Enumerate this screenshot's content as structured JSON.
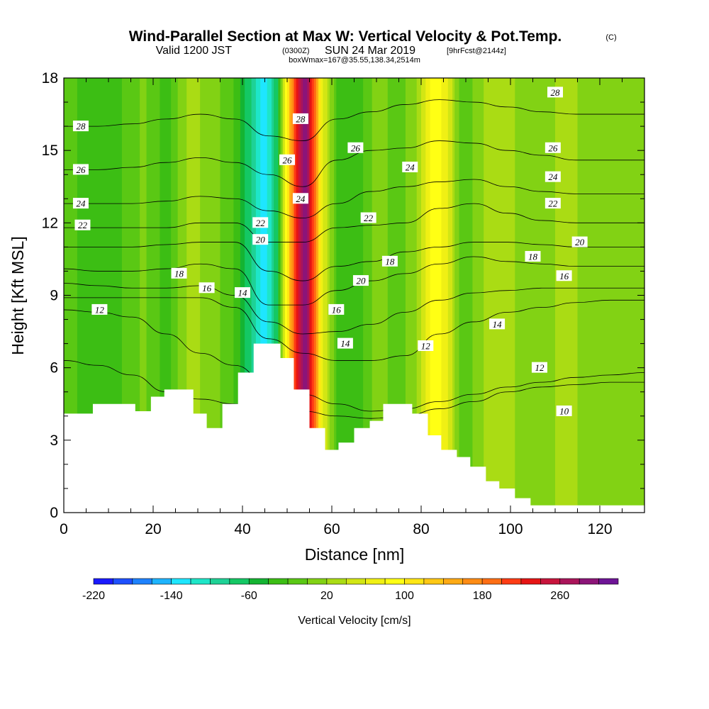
{
  "header": {
    "title": "Wind-Parallel Section at Max W: Vertical Velocity & Pot.Temp.",
    "copyright": "(C)",
    "valid_prefix": "Valid 1200 JST",
    "utc_time": "(0300Z)",
    "valid_date": "SUN 24 Mar 2019",
    "forecast": "[9hrFcst@2144z]",
    "box_info": "boxWmax=167@35.55,138.34,2514m"
  },
  "chart_data": {
    "type": "heatmap",
    "xlabel": "Distance [nm]",
    "ylabel": "Height [Kft MSL]",
    "xlim": [
      0,
      130
    ],
    "ylim": [
      0,
      18
    ],
    "x_ticks": [
      "0",
      "20",
      "40",
      "60",
      "80",
      "100",
      "120"
    ],
    "y_ticks": [
      "0",
      "3",
      "6",
      "9",
      "12",
      "15",
      "18"
    ],
    "grid": false,
    "colorbar": {
      "label": "Vertical Velocity [cm/s]",
      "min": -220,
      "max": 320,
      "step": 20,
      "tick_labels": [
        "-220",
        "-140",
        "-60",
        "20",
        "100",
        "180",
        "260"
      ],
      "colors": [
        "#1a1aff",
        "#1e50ff",
        "#1e82ff",
        "#1eb4ff",
        "#1ee6ff",
        "#1ee6c8",
        "#1ed296",
        "#14c864",
        "#14b432",
        "#3cbe14",
        "#5ac814",
        "#82d214",
        "#aadc14",
        "#d2e614",
        "#f0f014",
        "#ffff14",
        "#ffe614",
        "#ffc814",
        "#ffaa14",
        "#ff8c14",
        "#ff6e14",
        "#ff3c14",
        "#e61414",
        "#c8143c",
        "#aa145a",
        "#8c1478",
        "#6e1496"
      ]
    },
    "vertical_velocity_columns": [
      {
        "x": 0,
        "w": 0
      },
      {
        "x": 5,
        "w": -35
      },
      {
        "x": 12,
        "w": -25
      },
      {
        "x": 18,
        "w": 5
      },
      {
        "x": 23,
        "w": -30
      },
      {
        "x": 28,
        "w": 25
      },
      {
        "x": 33,
        "w": 15
      },
      {
        "x": 38,
        "w": -20
      },
      {
        "x": 42,
        "w": -80
      },
      {
        "x": 45,
        "w": -140
      },
      {
        "x": 48,
        "w": -60
      },
      {
        "x": 50,
        "w": 100
      },
      {
        "x": 52,
        "w": 220
      },
      {
        "x": 54,
        "w": 300
      },
      {
        "x": 56,
        "w": 200
      },
      {
        "x": 58,
        "w": 60
      },
      {
        "x": 61,
        "w": -20
      },
      {
        "x": 65,
        "w": -40
      },
      {
        "x": 70,
        "w": 10
      },
      {
        "x": 75,
        "w": -10
      },
      {
        "x": 79,
        "w": 20
      },
      {
        "x": 83,
        "w": 100
      },
      {
        "x": 86,
        "w": 60
      },
      {
        "x": 89,
        "w": -20
      },
      {
        "x": 93,
        "w": 15
      },
      {
        "x": 97,
        "w": 35
      },
      {
        "x": 101,
        "w": 20
      },
      {
        "x": 106,
        "w": 10
      },
      {
        "x": 112,
        "w": 25
      },
      {
        "x": 118,
        "w": 15
      },
      {
        "x": 124,
        "w": 10
      },
      {
        "x": 130,
        "w": 5
      }
    ],
    "terrain": [
      [
        0,
        4.1
      ],
      [
        6.5,
        4.1
      ],
      [
        6.5,
        4.5
      ],
      [
        16,
        4.5
      ],
      [
        16,
        4.2
      ],
      [
        19.5,
        4.2
      ],
      [
        19.5,
        4.8
      ],
      [
        22.5,
        4.8
      ],
      [
        22.5,
        5.1
      ],
      [
        29,
        5.1
      ],
      [
        29,
        4.1
      ],
      [
        32,
        4.1
      ],
      [
        32,
        3.5
      ],
      [
        35.5,
        3.5
      ],
      [
        35.5,
        4.5
      ],
      [
        39,
        4.5
      ],
      [
        39,
        5.8
      ],
      [
        42.5,
        5.8
      ],
      [
        42.5,
        7.0
      ],
      [
        48.5,
        7.0
      ],
      [
        48.5,
        6.4
      ],
      [
        51.5,
        6.4
      ],
      [
        51.5,
        5.1
      ],
      [
        55,
        5.1
      ],
      [
        55,
        3.5
      ],
      [
        58.5,
        3.5
      ],
      [
        58.5,
        2.6
      ],
      [
        61.5,
        2.6
      ],
      [
        61.5,
        2.9
      ],
      [
        65,
        2.9
      ],
      [
        65,
        3.5
      ],
      [
        68.5,
        3.5
      ],
      [
        68.5,
        3.8
      ],
      [
        71.5,
        3.8
      ],
      [
        71.5,
        4.5
      ],
      [
        78,
        4.5
      ],
      [
        78,
        4.1
      ],
      [
        81.5,
        4.1
      ],
      [
        81.5,
        3.2
      ],
      [
        84.5,
        3.2
      ],
      [
        84.5,
        2.6
      ],
      [
        88,
        2.6
      ],
      [
        88,
        2.3
      ],
      [
        91,
        2.3
      ],
      [
        91,
        1.9
      ],
      [
        94.5,
        1.9
      ],
      [
        94.5,
        1.3
      ],
      [
        97.5,
        1.3
      ],
      [
        97.5,
        1.0
      ],
      [
        101,
        1.0
      ],
      [
        101,
        0.6
      ],
      [
        104.5,
        0.6
      ],
      [
        104.5,
        0.3
      ],
      [
        130,
        0.3
      ]
    ],
    "theta_contours": [
      {
        "level": 10,
        "y": [
          6.3,
          6.1,
          5.7,
          5.0,
          4.7,
          4.5,
          4.3,
          4.2,
          4.0,
          3.9,
          4.0,
          4.3,
          4.6,
          5.0,
          5.2,
          5.3,
          5.4,
          5.4
        ]
      },
      {
        "level": 12,
        "y": [
          8.4,
          8.3,
          8.1,
          7.4,
          6.6,
          6.1,
          5.3,
          4.9,
          4.5,
          4.2,
          4.3,
          4.6,
          4.9,
          5.2,
          5.4,
          5.6,
          5.7,
          5.8
        ]
      },
      {
        "level": 14,
        "y": [
          8.9,
          8.9,
          8.9,
          8.9,
          8.9,
          8.5,
          7.2,
          6.6,
          6.3,
          6.3,
          6.5,
          7.4,
          7.9,
          8.3,
          8.5,
          8.7,
          8.8,
          8.8
        ]
      },
      {
        "level": 16,
        "y": [
          9.5,
          9.4,
          9.3,
          9.3,
          9.4,
          9.0,
          7.9,
          7.4,
          7.5,
          7.8,
          8.3,
          8.8,
          9.1,
          9.2,
          9.3,
          9.3,
          9.3,
          9.3
        ]
      },
      {
        "level": 18,
        "y": [
          10.1,
          10.0,
          10.0,
          10.1,
          10.3,
          10.1,
          8.6,
          8.6,
          9.2,
          9.6,
          9.9,
          10.3,
          10.6,
          10.4,
          10.3,
          10.2,
          10.2,
          10.2
        ]
      },
      {
        "level": 20,
        "y": [
          11.0,
          11.0,
          11.0,
          11.1,
          11.2,
          11.2,
          10.0,
          9.6,
          10.2,
          10.4,
          10.8,
          11.0,
          11.2,
          11.2,
          11.1,
          11.0,
          11.0,
          11.0
        ]
      },
      {
        "level": 22,
        "y": [
          11.8,
          11.8,
          11.8,
          11.8,
          12.0,
          12.0,
          11.2,
          11.2,
          11.8,
          11.9,
          12.0,
          12.6,
          12.8,
          12.4,
          12.1,
          12.0,
          12.0,
          12.0
        ]
      },
      {
        "level": 24,
        "y": [
          12.8,
          12.8,
          12.8,
          12.9,
          13.1,
          13.0,
          12.5,
          12.2,
          12.8,
          13.3,
          13.5,
          13.7,
          13.8,
          13.5,
          13.3,
          13.2,
          13.2,
          13.2
        ]
      },
      {
        "level": 26,
        "y": [
          14.2,
          14.2,
          14.3,
          14.5,
          14.7,
          14.5,
          14.0,
          13.5,
          14.6,
          15.0,
          15.1,
          15.4,
          15.3,
          15.0,
          14.8,
          14.6,
          14.6,
          14.6
        ]
      },
      {
        "level": 28,
        "y": [
          16.0,
          16.0,
          16.1,
          16.3,
          16.5,
          16.3,
          15.6,
          15.4,
          16.3,
          16.6,
          16.9,
          17.1,
          17.0,
          16.8,
          16.6,
          16.5,
          16.5,
          16.5
        ]
      }
    ],
    "contour_label_positions": [
      {
        "text": "28",
        "x": 3.8,
        "y": 16.0
      },
      {
        "text": "26",
        "x": 3.8,
        "y": 14.2
      },
      {
        "text": "24",
        "x": 3.8,
        "y": 12.8
      },
      {
        "text": "22",
        "x": 4.2,
        "y": 11.9
      },
      {
        "text": "12",
        "x": 8.0,
        "y": 8.4
      },
      {
        "text": "18",
        "x": 25.8,
        "y": 9.9
      },
      {
        "text": "16",
        "x": 32.0,
        "y": 9.3
      },
      {
        "text": "14",
        "x": 40.0,
        "y": 9.1
      },
      {
        "text": "22",
        "x": 44.0,
        "y": 12.0
      },
      {
        "text": "20",
        "x": 44.0,
        "y": 11.3
      },
      {
        "text": "28",
        "x": 53.0,
        "y": 16.3
      },
      {
        "text": "26",
        "x": 50.0,
        "y": 14.6
      },
      {
        "text": "24",
        "x": 53.0,
        "y": 13.0
      },
      {
        "text": "16",
        "x": 61.0,
        "y": 8.4
      },
      {
        "text": "14",
        "x": 63.0,
        "y": 7.0
      },
      {
        "text": "26",
        "x": 65.3,
        "y": 15.1
      },
      {
        "text": "22",
        "x": 68.2,
        "y": 12.2
      },
      {
        "text": "20",
        "x": 66.5,
        "y": 9.6
      },
      {
        "text": "18",
        "x": 73.0,
        "y": 10.4
      },
      {
        "text": "24",
        "x": 77.5,
        "y": 14.3
      },
      {
        "text": "12",
        "x": 81.0,
        "y": 6.9
      },
      {
        "text": "28",
        "x": 110.0,
        "y": 17.4
      },
      {
        "text": "26",
        "x": 109.5,
        "y": 15.1
      },
      {
        "text": "24",
        "x": 109.5,
        "y": 13.9
      },
      {
        "text": "22",
        "x": 109.5,
        "y": 12.8
      },
      {
        "text": "18",
        "x": 105.0,
        "y": 10.6
      },
      {
        "text": "16",
        "x": 112.0,
        "y": 9.8
      },
      {
        "text": "20",
        "x": 115.5,
        "y": 11.2
      },
      {
        "text": "14",
        "x": 97.0,
        "y": 7.8
      },
      {
        "text": "12",
        "x": 106.5,
        "y": 6.0
      },
      {
        "text": "10",
        "x": 112.0,
        "y": 4.2
      }
    ]
  }
}
